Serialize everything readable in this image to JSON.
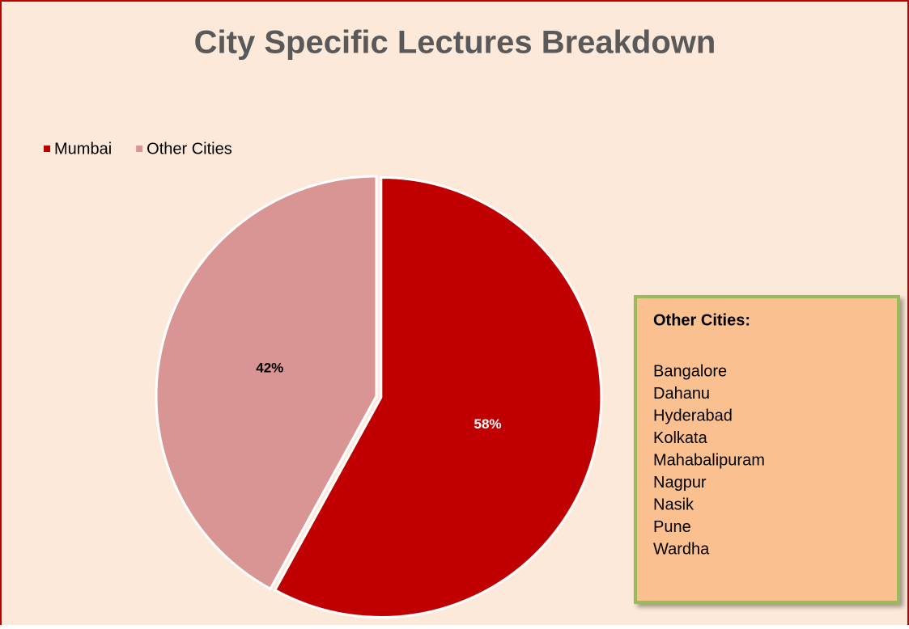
{
  "chart_data": {
    "type": "pie",
    "title": "City Specific Lectures Breakdown",
    "categories": [
      "Mumbai",
      "Other Cities"
    ],
    "values": [
      58,
      42
    ],
    "value_labels": [
      "58%",
      "42%"
    ],
    "colors": [
      "#c00000",
      "#d99594"
    ],
    "label_colors": [
      "#ffffff",
      "#000000"
    ],
    "legend": "top-left",
    "annotation": {
      "title": "Other Cities:",
      "items": [
        "Bangalore",
        "Dahanu",
        "Hyderabad",
        "Kolkata",
        "Mahabalipuram",
        "Nagpur",
        "Nasik",
        "Pune",
        "Wardha"
      ]
    }
  }
}
